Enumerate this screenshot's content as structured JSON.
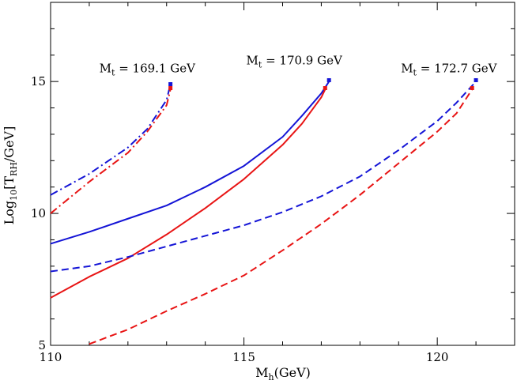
{
  "chart_data": {
    "type": "line",
    "title": "",
    "xlabel": {
      "main": "M",
      "sub": "h",
      "suffix": "(GeV)"
    },
    "ylabel": {
      "prefix": "Log",
      "sub1": "10",
      "mid": "[T",
      "sub2": "RH",
      "suffix": "/GeV]"
    },
    "xlim": [
      110,
      122
    ],
    "ylim": [
      5,
      18
    ],
    "xticks": [
      110,
      115,
      120
    ],
    "yticks": [
      5,
      10,
      15
    ],
    "grid": false,
    "colors": {
      "blue": "#1414d6",
      "red": "#e81414"
    },
    "series": [
      {
        "name": "Mt=169.1 blue (dash-dot)",
        "color": "blue",
        "dash": "dashdot",
        "x": [
          110,
          111,
          112,
          112.5,
          113.0,
          113.1
        ],
        "y": [
          10.7,
          11.5,
          12.5,
          13.2,
          14.3,
          14.9
        ]
      },
      {
        "name": "Mt=169.1 red (dash-dot)",
        "color": "red",
        "dash": "dashdot",
        "x": [
          110,
          111,
          112,
          112.5,
          113.0,
          113.1
        ],
        "y": [
          10.0,
          11.2,
          12.3,
          13.1,
          14.1,
          14.7
        ]
      },
      {
        "name": "Mt=170.9 blue (solid)",
        "color": "blue",
        "dash": "solid",
        "x": [
          110,
          111,
          112,
          113,
          114,
          115,
          116,
          116.5,
          117.0,
          117.2
        ],
        "y": [
          8.85,
          9.3,
          9.8,
          10.3,
          11.0,
          11.8,
          12.9,
          13.7,
          14.55,
          15.0
        ]
      },
      {
        "name": "Mt=170.9 red (solid)",
        "color": "red",
        "dash": "solid",
        "x": [
          110,
          111,
          112,
          113,
          114,
          115,
          116,
          116.5,
          117.0,
          117.1
        ],
        "y": [
          6.8,
          7.6,
          8.3,
          9.2,
          10.2,
          11.3,
          12.6,
          13.4,
          14.4,
          14.7
        ]
      },
      {
        "name": "Mt=172.7 blue (dashed)",
        "color": "blue",
        "dash": "dashed",
        "x": [
          110,
          111,
          112,
          113,
          114,
          115,
          116,
          117,
          118,
          119,
          120,
          120.5,
          121.0
        ],
        "y": [
          7.8,
          8.0,
          8.35,
          8.75,
          9.15,
          9.55,
          10.05,
          10.65,
          11.4,
          12.4,
          13.5,
          14.2,
          15.0
        ]
      },
      {
        "name": "Mt=172.7 red (dashed)",
        "color": "red",
        "dash": "dashed",
        "x": [
          111,
          112,
          113,
          114,
          115,
          116,
          117,
          118,
          119,
          120,
          120.5,
          120.9
        ],
        "y": [
          5.05,
          5.6,
          6.3,
          6.95,
          7.65,
          8.6,
          9.6,
          10.7,
          11.9,
          13.1,
          13.8,
          14.7
        ]
      }
    ],
    "endpoints": [
      {
        "color": "blue",
        "x": 113.1,
        "y": 14.9
      },
      {
        "color": "red",
        "x": 113.1,
        "y": 14.75
      },
      {
        "color": "blue",
        "x": 117.2,
        "y": 15.05
      },
      {
        "color": "red",
        "x": 117.1,
        "y": 14.75
      },
      {
        "color": "blue",
        "x": 121.0,
        "y": 15.05
      },
      {
        "color": "red",
        "x": 120.9,
        "y": 14.75
      }
    ],
    "annotations": [
      {
        "main": "M",
        "sub": "t",
        "rest": " = 169.1 GeV",
        "x": 112.5,
        "y": 15.35
      },
      {
        "main": "M",
        "sub": "t",
        "rest": " = 170.9 GeV",
        "x": 116.3,
        "y": 15.65
      },
      {
        "main": "M",
        "sub": "t",
        "rest": " = 172.7 GeV",
        "x": 120.3,
        "y": 15.35
      }
    ]
  }
}
